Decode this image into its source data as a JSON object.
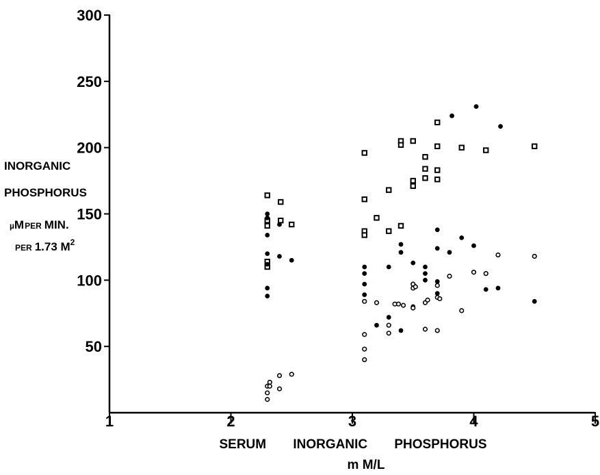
{
  "chart_data": {
    "type": "scatter",
    "title": "",
    "xlabel": "SERUM INORGANIC PHOSPHORUS",
    "xlabel_unit": "m M/L",
    "ylabel_lines": [
      "INORGANIC",
      "PHOSPHORUS"
    ],
    "ylabel_unit": {
      "mu": "µ",
      "M": "M",
      "per": "PER",
      "min": "MIN.",
      "line2_per": "PER",
      "line2_value": "1.73 M",
      "line2_sup": "2"
    },
    "xlim": [
      1,
      5
    ],
    "ylim": [
      0,
      300
    ],
    "x_ticks": [
      {
        "value": 1,
        "label": "1"
      },
      {
        "value": 2,
        "label": "2"
      },
      {
        "value": 3,
        "label": "3"
      },
      {
        "value": 4,
        "label": "4"
      },
      {
        "value": 5,
        "label": "5"
      }
    ],
    "y_ticks": [
      {
        "value": 50,
        "label": "50"
      },
      {
        "value": 100,
        "label": "100"
      },
      {
        "value": 150,
        "label": "150"
      },
      {
        "value": 200,
        "label": "200"
      },
      {
        "value": 250,
        "label": "250"
      },
      {
        "value": 300,
        "label": "300"
      }
    ],
    "grid": false,
    "series": [
      {
        "marker": "open-square",
        "points": [
          [
            2.3,
            164
          ],
          [
            2.3,
            145
          ],
          [
            2.3,
            141
          ],
          [
            2.3,
            114
          ],
          [
            2.3,
            110
          ],
          [
            2.41,
            159
          ],
          [
            2.41,
            145
          ],
          [
            2.5,
            142
          ],
          [
            3.1,
            196
          ],
          [
            3.1,
            161
          ],
          [
            3.1,
            137
          ],
          [
            3.1,
            134
          ],
          [
            3.2,
            147
          ],
          [
            3.3,
            168
          ],
          [
            3.3,
            137
          ],
          [
            3.4,
            205
          ],
          [
            3.4,
            202
          ],
          [
            3.4,
            141
          ],
          [
            3.5,
            205
          ],
          [
            3.5,
            175
          ],
          [
            3.5,
            171
          ],
          [
            3.6,
            193
          ],
          [
            3.6,
            184
          ],
          [
            3.6,
            177
          ],
          [
            3.7,
            219
          ],
          [
            3.7,
            201
          ],
          [
            3.7,
            183
          ],
          [
            3.7,
            176
          ],
          [
            3.9,
            200
          ],
          [
            4.1,
            198
          ],
          [
            4.5,
            201
          ]
        ]
      },
      {
        "marker": "filled-circle",
        "points": [
          [
            2.3,
            150
          ],
          [
            2.3,
            147
          ],
          [
            2.3,
            134
          ],
          [
            2.3,
            120
          ],
          [
            2.3,
            112
          ],
          [
            2.3,
            94
          ],
          [
            2.3,
            88
          ],
          [
            2.4,
            142
          ],
          [
            2.4,
            118
          ],
          [
            2.5,
            115
          ],
          [
            3.1,
            110
          ],
          [
            3.1,
            105
          ],
          [
            3.1,
            97
          ],
          [
            3.1,
            89
          ],
          [
            3.2,
            66
          ],
          [
            3.3,
            110
          ],
          [
            3.3,
            72
          ],
          [
            3.4,
            127
          ],
          [
            3.4,
            121
          ],
          [
            3.4,
            62
          ],
          [
            3.5,
            113
          ],
          [
            3.5,
            97
          ],
          [
            3.5,
            80
          ],
          [
            3.6,
            110
          ],
          [
            3.6,
            105
          ],
          [
            3.6,
            100
          ],
          [
            3.7,
            138
          ],
          [
            3.7,
            124
          ],
          [
            3.7,
            99
          ],
          [
            3.7,
            90
          ],
          [
            3.8,
            121
          ],
          [
            3.82,
            224
          ],
          [
            3.9,
            132
          ],
          [
            4.0,
            126
          ],
          [
            4.02,
            231
          ],
          [
            4.1,
            93
          ],
          [
            4.2,
            94
          ],
          [
            4.22,
            216
          ],
          [
            4.5,
            84
          ]
        ]
      },
      {
        "marker": "open-circle",
        "points": [
          [
            2.3,
            20
          ],
          [
            2.3,
            15
          ],
          [
            2.3,
            10
          ],
          [
            2.32,
            20
          ],
          [
            2.32,
            23
          ],
          [
            2.4,
            28
          ],
          [
            2.4,
            18
          ],
          [
            2.5,
            29
          ],
          [
            3.1,
            84
          ],
          [
            3.1,
            59
          ],
          [
            3.1,
            48
          ],
          [
            3.1,
            40
          ],
          [
            3.2,
            83
          ],
          [
            3.3,
            60
          ],
          [
            3.3,
            66
          ],
          [
            3.35,
            82
          ],
          [
            3.38,
            82
          ],
          [
            3.42,
            81
          ],
          [
            3.5,
            97
          ],
          [
            3.5,
            94
          ],
          [
            3.5,
            79
          ],
          [
            3.52,
            95
          ],
          [
            3.6,
            83
          ],
          [
            3.62,
            85
          ],
          [
            3.6,
            63
          ],
          [
            3.7,
            96
          ],
          [
            3.7,
            87
          ],
          [
            3.72,
            86
          ],
          [
            3.7,
            62
          ],
          [
            3.8,
            103
          ],
          [
            3.9,
            77
          ],
          [
            4.0,
            106
          ],
          [
            4.1,
            105
          ],
          [
            4.2,
            119
          ],
          [
            4.5,
            118
          ]
        ]
      }
    ]
  }
}
